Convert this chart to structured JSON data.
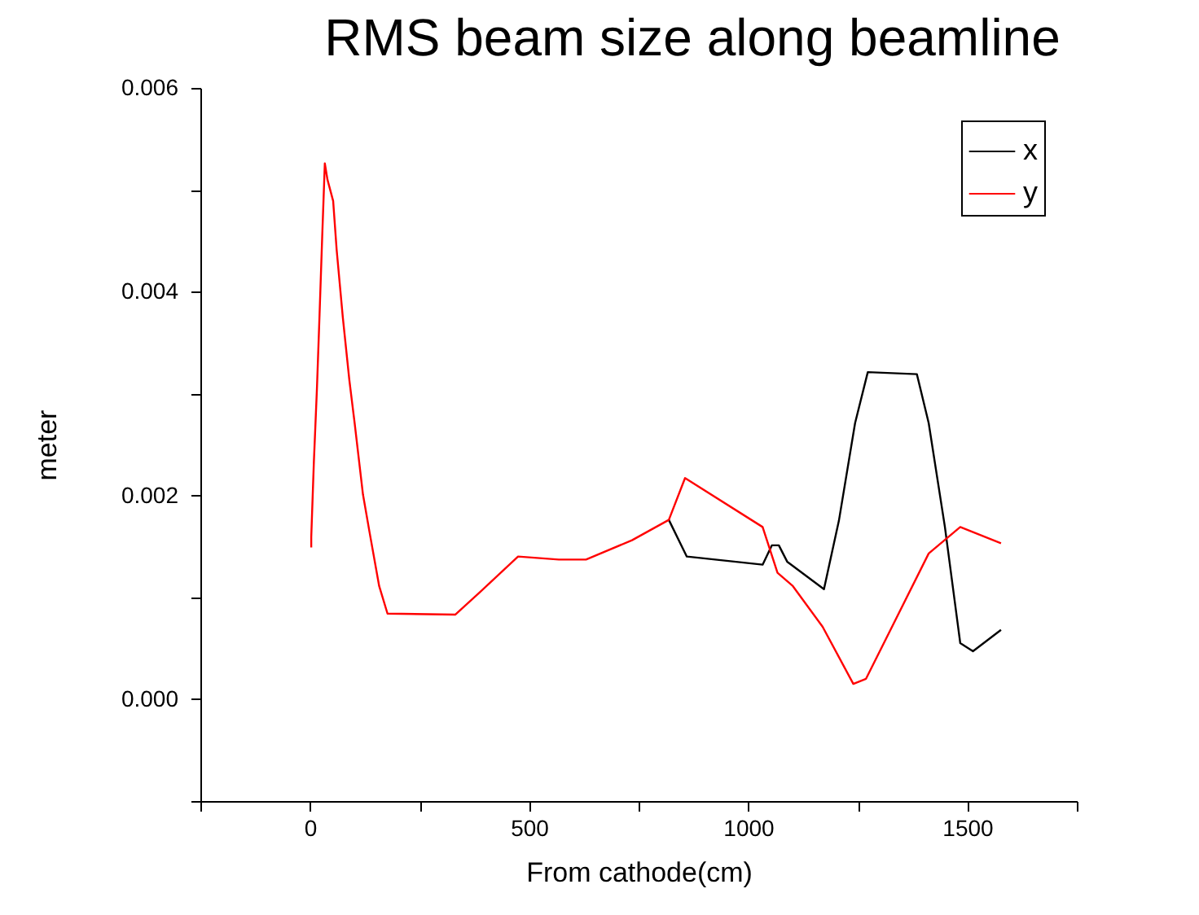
{
  "chart_data": {
    "type": "line",
    "title": "RMS beam size along beamline",
    "xlabel": "From cathode(cm)",
    "ylabel": "meter",
    "xlim": [
      -250,
      1750
    ],
    "xticks": [
      {
        "value": -250,
        "label": null
      },
      0,
      {
        "value": 250,
        "label": null
      },
      500,
      {
        "value": 750,
        "label": null
      },
      1000,
      {
        "value": 1250,
        "label": null
      },
      1500,
      {
        "value": 1750,
        "label": null
      }
    ],
    "ylim": [
      -0.001,
      0.006
    ],
    "yticks": [
      {
        "value": -0.001,
        "label": null
      },
      {
        "value": 0,
        "label": "0.000"
      },
      {
        "value": 0.001,
        "label": null
      },
      {
        "value": 0.002,
        "label": "0.002"
      },
      {
        "value": 0.003,
        "label": null
      },
      {
        "value": 0.004,
        "label": "0.004"
      },
      {
        "value": 0.005,
        "label": null
      },
      {
        "value": 0.006,
        "label": "0.006"
      }
    ],
    "grid": false,
    "legend": "top right",
    "marker": "none",
    "line_style": "solid",
    "series": [
      {
        "name": "x",
        "color": "#000000",
        "x": [
          819,
          860,
          1033,
          1054,
          1070,
          1089,
          1173,
          1207,
          1244,
          1273,
          1385,
          1412,
          1449,
          1484,
          1513,
          1577
        ],
        "values": [
          0.00176,
          0.0014,
          0.00132,
          0.00151,
          0.00151,
          0.00135,
          0.00108,
          0.00175,
          0.00271,
          0.00321,
          0.00319,
          0.00271,
          0.00169,
          0.00055,
          0.00047,
          0.00068
        ]
      },
      {
        "name": "y",
        "color": "#ff0000",
        "x": [
          3,
          3,
          9,
          16,
          22,
          28,
          34,
          40,
          53,
          61,
          75,
          90,
          102,
          121,
          136,
          158,
          177,
          332,
          388,
          475,
          568,
          630,
          735,
          819,
          856,
          1033,
          1067,
          1102,
          1170,
          1240,
          1269,
          1412,
          1484,
          1577
        ],
        "values": [
          0.00149,
          0.00159,
          0.00233,
          0.00305,
          0.00378,
          0.00454,
          0.00526,
          0.0051,
          0.00489,
          0.00441,
          0.00375,
          0.00313,
          0.00271,
          0.00201,
          0.00164,
          0.00111,
          0.00084,
          0.00083,
          0.00105,
          0.0014,
          0.00137,
          0.00137,
          0.00156,
          0.00176,
          0.00217,
          0.00169,
          0.00124,
          0.00111,
          0.00071,
          0.00015,
          0.0002,
          0.00143,
          0.00169,
          0.00153
        ]
      }
    ]
  }
}
